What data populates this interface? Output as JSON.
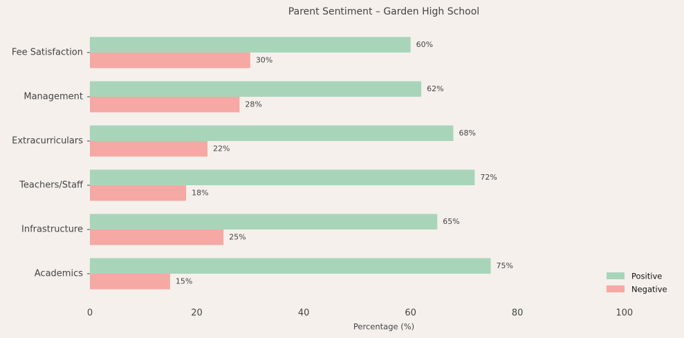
{
  "chart_data": {
    "type": "barh",
    "title": "Parent Sentiment – Garden High School",
    "x_label": "Percentage (%)",
    "categories": [
      "Fee Satisfaction",
      "Management",
      "Extracurriculars",
      "Teachers/Staff",
      "Infrastructure",
      "Academics"
    ],
    "series": [
      {
        "name": "Positive",
        "color": "#a8d5ba",
        "values": [
          60,
          62,
          68,
          72,
          65,
          75
        ],
        "value_labels": [
          "60%",
          "62%",
          "68%",
          "72%",
          "65%",
          "75%"
        ]
      },
      {
        "name": "Negative",
        "color": "#f5a8a4",
        "values": [
          30,
          28,
          22,
          18,
          25,
          15
        ],
        "value_labels": [
          "30%",
          "28%",
          "22%",
          "18%",
          "25%",
          "15%"
        ]
      }
    ],
    "xlim": [
      0,
      110
    ],
    "xticks": [
      0,
      20,
      40,
      60,
      80,
      100
    ],
    "grid": false,
    "legend": "lower right"
  }
}
